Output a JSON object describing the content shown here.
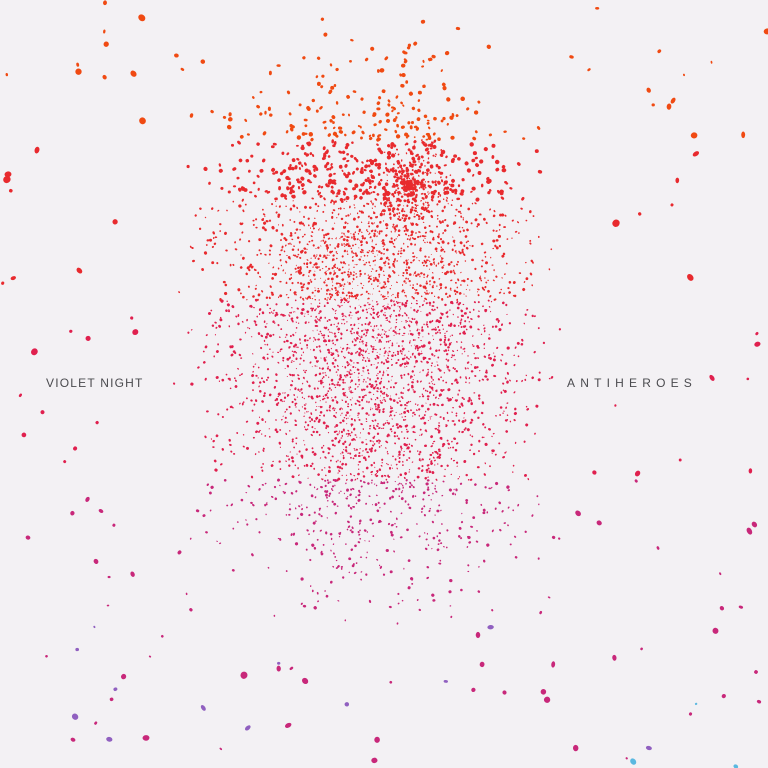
{
  "cover": {
    "artist": "VIOLET NIGHT",
    "title": "ANTIHEROES"
  },
  "colors": {
    "background": "#f3f1f4",
    "top": "#f04a12",
    "upper": "#e82a2e",
    "middle": "#e0204e",
    "lower": "#c8287a",
    "bottom_purple": "#9060c0",
    "bottom_cyan": "#5ab8e0",
    "text": "#4a4a4e"
  }
}
